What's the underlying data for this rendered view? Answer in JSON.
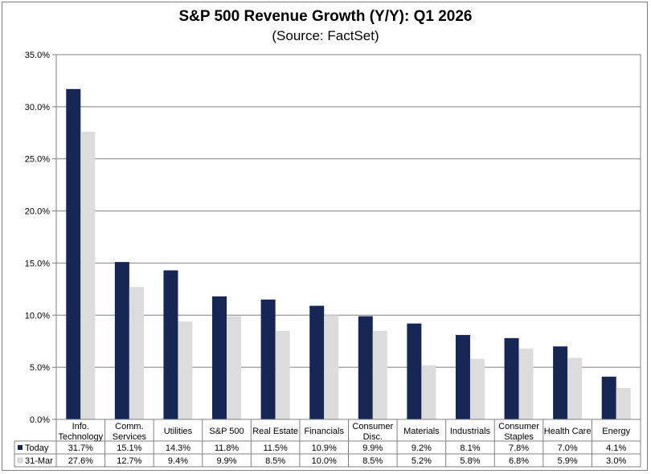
{
  "chart_data": {
    "type": "bar",
    "title": "S&P 500 Revenue Growth (Y/Y): Q1 2026",
    "subtitle": "(Source: FactSet)",
    "categories": [
      [
        "Info.",
        "Technology"
      ],
      [
        "Comm.",
        "Services"
      ],
      [
        "Utilities"
      ],
      [
        "S&P 500"
      ],
      [
        "Real Estate"
      ],
      [
        "Financials"
      ],
      [
        "Consumer",
        "Disc."
      ],
      [
        "Materials"
      ],
      [
        "Industrials"
      ],
      [
        "Consumer",
        "Staples"
      ],
      [
        "Health Care"
      ],
      [
        "Energy"
      ]
    ],
    "series": [
      {
        "name": "Today",
        "color": "#162756",
        "values": [
          31.7,
          15.1,
          14.3,
          11.8,
          11.5,
          10.9,
          9.9,
          9.2,
          8.1,
          7.8,
          7.0,
          4.1
        ],
        "labels": [
          "31.7%",
          "15.1%",
          "14.3%",
          "11.8%",
          "11.5%",
          "10.9%",
          "9.9%",
          "9.2%",
          "8.1%",
          "7.8%",
          "7.0%",
          "4.1%"
        ]
      },
      {
        "name": "31-Mar",
        "color": "#dcdcdc",
        "values": [
          27.6,
          12.7,
          9.4,
          9.9,
          8.5,
          10.0,
          8.5,
          5.2,
          5.8,
          6.8,
          5.9,
          3.0
        ],
        "labels": [
          "27.6%",
          "12.7%",
          "9.4%",
          "9.9%",
          "8.5%",
          "10.0%",
          "8.5%",
          "5.2%",
          "5.8%",
          "6.8%",
          "5.9%",
          "3.0%"
        ]
      }
    ],
    "ylim": [
      0,
      35
    ],
    "yticks": [
      "0.0%",
      "5.0%",
      "10.0%",
      "15.0%",
      "20.0%",
      "25.0%",
      "30.0%",
      "35.0%"
    ],
    "grid": true,
    "legend": "data table below chart"
  }
}
